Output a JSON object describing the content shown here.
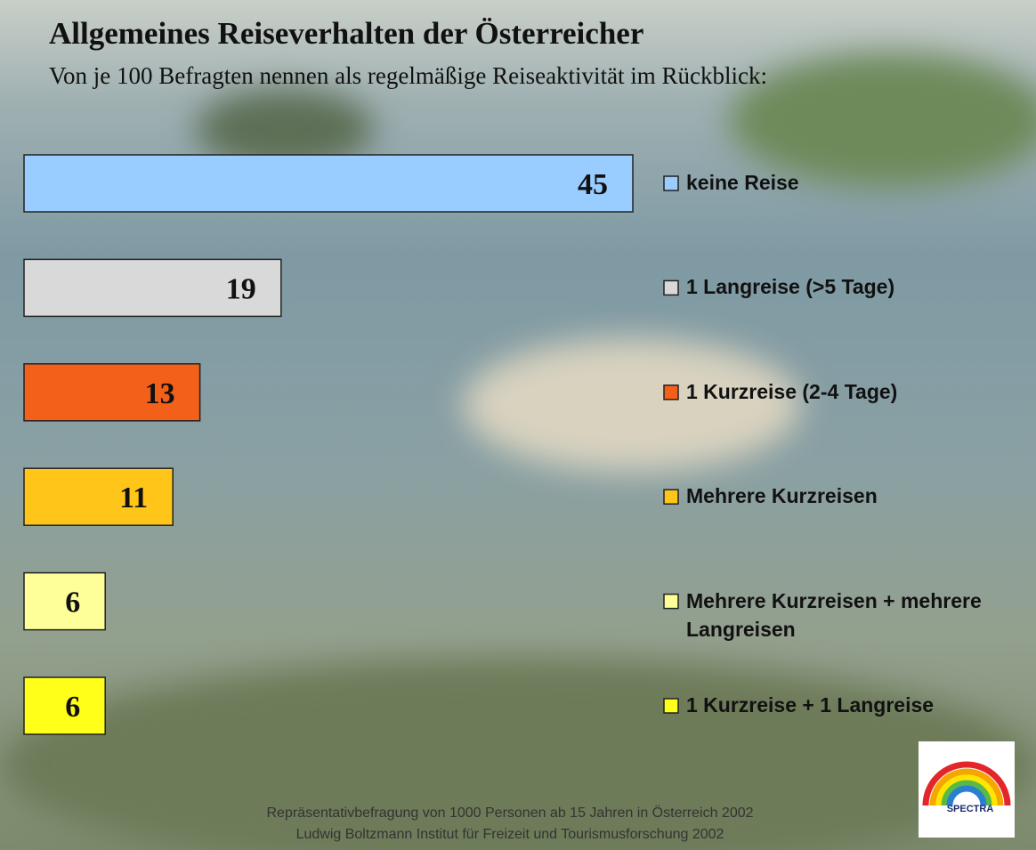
{
  "chart_data": {
    "type": "bar",
    "orientation": "horizontal",
    "title": "Allgemeines Reiseverhalten der Österreicher",
    "subtitle": "Von je 100 Befragten nennen als regelmäßige Reiseaktivität im Rückblick:",
    "categories": [
      "keine Reise",
      "1 Langreise (>5 Tage)",
      "1 Kurzreise (2-4 Tage)",
      "Mehrere Kurzreisen",
      "Mehrere Kurzreisen + mehrere Langreisen",
      "1 Kurzreise + 1 Langreise"
    ],
    "values": [
      45,
      19,
      13,
      11,
      6,
      6
    ],
    "colors": [
      "#99ccff",
      "#d9d9d9",
      "#f2601a",
      "#ffc619",
      "#ffff99",
      "#ffff1a"
    ],
    "footnotes": [
      "Repräsentativbefragung von 1000 Personen ab 15 Jahren in Österreich 2002",
      "Ludwig Boltzmann Institut für Freizeit und Tourismusforschung 2002"
    ],
    "logo_text": "SPECTRA"
  }
}
